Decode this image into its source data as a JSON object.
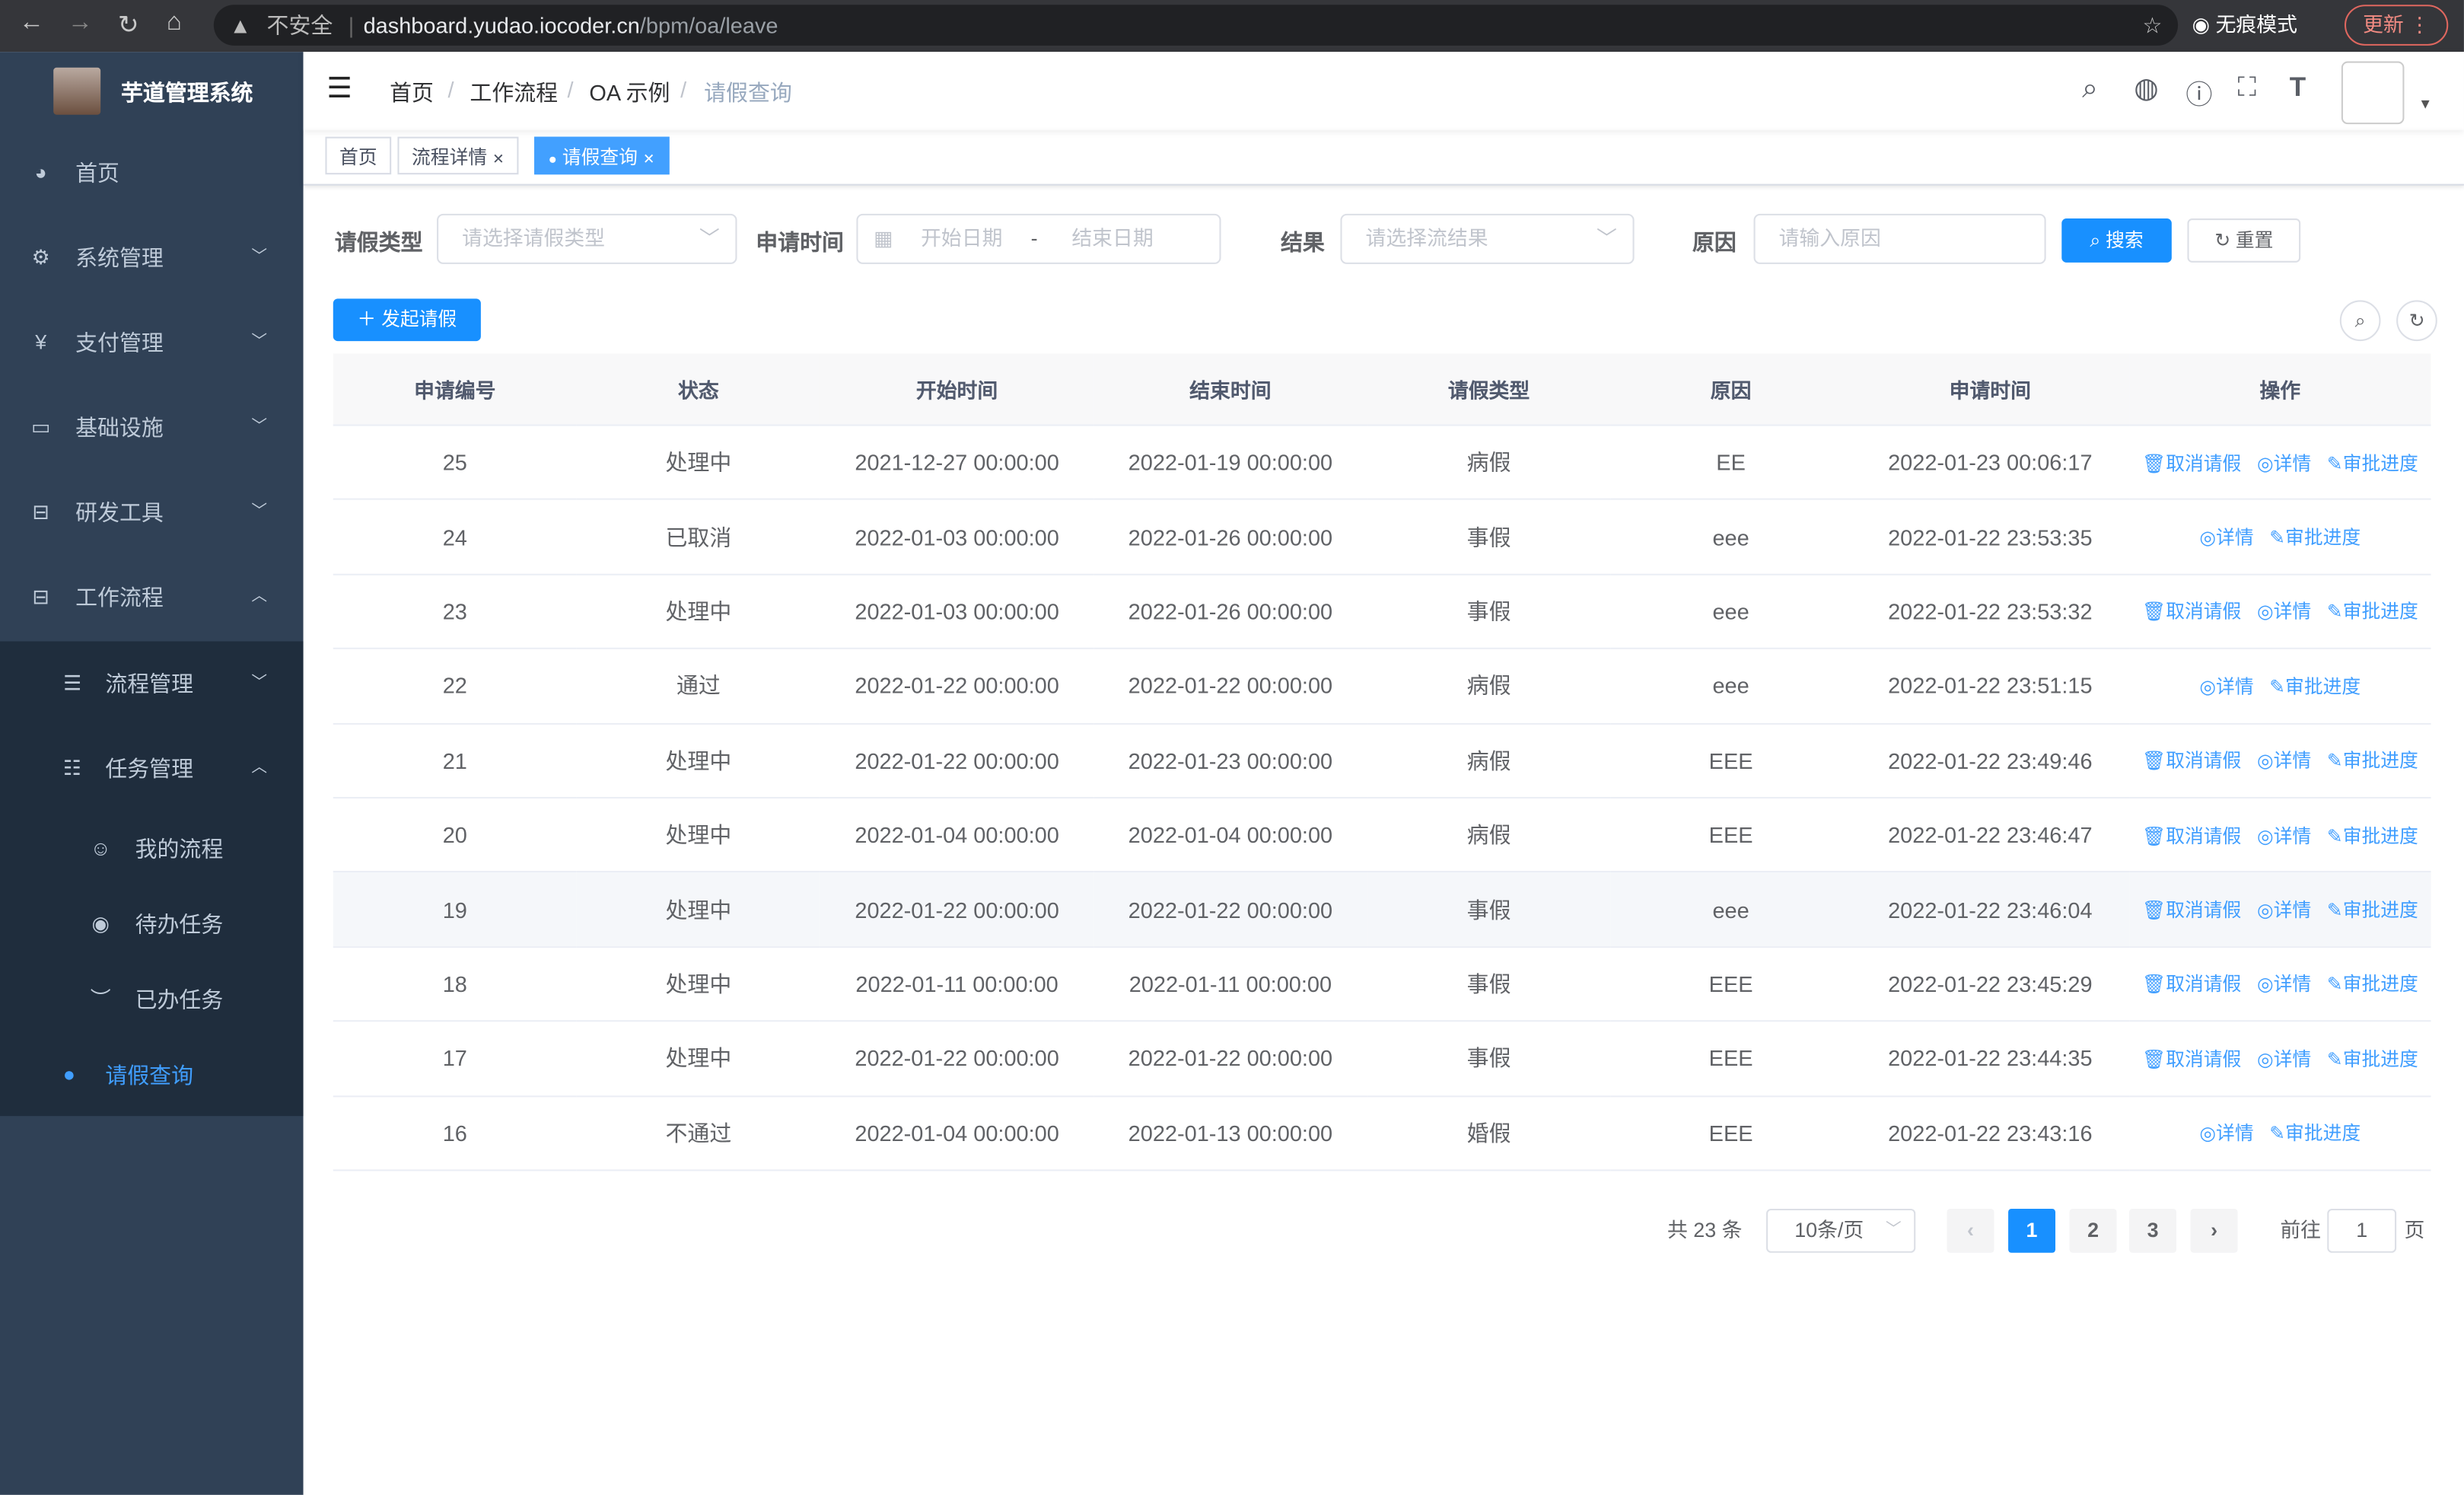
{
  "browser": {
    "url_host": "dashboard.yudao.iocoder.cn",
    "url_path": "/bpm/oa/leave",
    "insecure": "不安全",
    "incognito": "无痕模式",
    "update": "更新"
  },
  "sidebar": {
    "brand": "芋道管理系统",
    "items": [
      {
        "label": "首页",
        "icon": "dashboard-icon"
      },
      {
        "label": "系统管理",
        "icon": "gear-icon"
      },
      {
        "label": "支付管理",
        "icon": "yen-icon"
      },
      {
        "label": "基础设施",
        "icon": "monitor-icon"
      },
      {
        "label": "研发工具",
        "icon": "toolbox-icon"
      },
      {
        "label": "工作流程",
        "icon": "toolbox-icon"
      },
      {
        "label": "流程管理",
        "icon": "list-icon"
      },
      {
        "label": "任务管理",
        "icon": "task-icon"
      },
      {
        "label": "我的流程",
        "icon": "chat-icon"
      },
      {
        "label": "待办任务",
        "icon": "eye-icon"
      },
      {
        "label": "已办任务",
        "icon": "eye-closed-icon"
      },
      {
        "label": "请假查询",
        "icon": "user-icon"
      }
    ],
    "active": "请假查询",
    "colors": {
      "bg": "#304156",
      "submenu": "#1f2d3d",
      "active": "#409eff"
    }
  },
  "breadcrumb": [
    "首页",
    "工作流程",
    "OA 示例",
    "请假查询"
  ],
  "tags": [
    {
      "label": "首页"
    },
    {
      "label": "流程详情"
    },
    {
      "label": "请假查询",
      "active": true
    }
  ],
  "filters": {
    "type_label": "请假类型",
    "type_placeholder": "请选择请假类型",
    "time_label": "申请时间",
    "start_placeholder": "开始日期",
    "sep": "-",
    "end_placeholder": "结束日期",
    "result_label": "结果",
    "result_placeholder": "请选择流结果",
    "reason_label": "原因",
    "reason_placeholder": "请输入原因",
    "search": "搜索",
    "reset": "重置"
  },
  "toolbar": {
    "create": "发起请假"
  },
  "table": {
    "columns": [
      "申请编号",
      "状态",
      "开始时间",
      "结束时间",
      "请假类型",
      "原因",
      "申请时间",
      "操作"
    ],
    "actions": {
      "cancel": "取消请假",
      "detail": "详情",
      "progress": "审批进度"
    },
    "rows": [
      [
        "25",
        "处理中",
        "2021-12-27 00:00:00",
        "2022-01-19 00:00:00",
        "病假",
        "EE",
        "2022-01-23 00:06:17",
        true
      ],
      [
        "24",
        "已取消",
        "2022-01-03 00:00:00",
        "2022-01-26 00:00:00",
        "事假",
        "eee",
        "2022-01-22 23:53:35",
        false
      ],
      [
        "23",
        "处理中",
        "2022-01-03 00:00:00",
        "2022-01-26 00:00:00",
        "事假",
        "eee",
        "2022-01-22 23:53:32",
        true
      ],
      [
        "22",
        "通过",
        "2022-01-22 00:00:00",
        "2022-01-22 00:00:00",
        "病假",
        "eee",
        "2022-01-22 23:51:15",
        false
      ],
      [
        "21",
        "处理中",
        "2022-01-22 00:00:00",
        "2022-01-23 00:00:00",
        "病假",
        "EEE",
        "2022-01-22 23:49:46",
        true
      ],
      [
        "20",
        "处理中",
        "2022-01-04 00:00:00",
        "2022-01-04 00:00:00",
        "病假",
        "EEE",
        "2022-01-22 23:46:47",
        true
      ],
      [
        "19",
        "处理中",
        "2022-01-22 00:00:00",
        "2022-01-22 00:00:00",
        "事假",
        "eee",
        "2022-01-22 23:46:04",
        true
      ],
      [
        "18",
        "处理中",
        "2022-01-11 00:00:00",
        "2022-01-11 00:00:00",
        "事假",
        "EEE",
        "2022-01-22 23:45:29",
        true
      ],
      [
        "17",
        "处理中",
        "2022-01-22 00:00:00",
        "2022-01-22 00:00:00",
        "事假",
        "EEE",
        "2022-01-22 23:44:35",
        true
      ],
      [
        "16",
        "不通过",
        "2022-01-04 00:00:00",
        "2022-01-13 00:00:00",
        "婚假",
        "EEE",
        "2022-01-22 23:43:16",
        false
      ]
    ]
  },
  "pagination": {
    "total": "共 23 条",
    "page_size": "10条/页",
    "pages": [
      "1",
      "2",
      "3"
    ],
    "current": "1",
    "goto": "前往",
    "goto_value": "1",
    "page_unit": "页"
  }
}
